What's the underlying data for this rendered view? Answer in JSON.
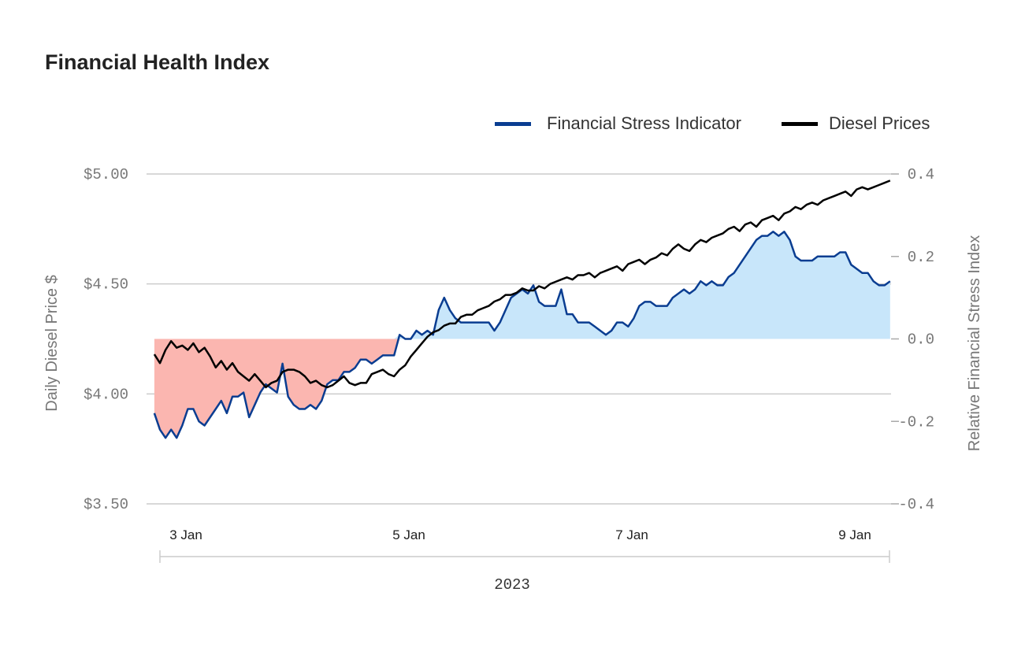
{
  "chart_title": "Financial Health Index",
  "chart_data": {
    "type": "line",
    "title": "Financial Health Index",
    "x_unit": "days since 3 Jan 2023 00:00",
    "x_range": [
      -0.05,
      6.55
    ],
    "x_ticks": [
      {
        "value": 0,
        "label": "3 Jan"
      },
      {
        "value": 2,
        "label": "5 Jan"
      },
      {
        "value": 4,
        "label": "7 Jan"
      },
      {
        "value": 6,
        "label": "9 Jan"
      }
    ],
    "x_group_label": "2023",
    "y_left": {
      "label": "Daily Diesel Price $",
      "range": [
        3.5,
        5.0
      ],
      "ticks": [
        "$3.50",
        "$4.00",
        "$4.50",
        "$5.00"
      ]
    },
    "y_right": {
      "label": "Relative Financial Stress Index",
      "range": [
        -0.4,
        0.4
      ],
      "ticks": [
        "-0.4",
        "-0.2",
        "0.0",
        "0.2",
        "0.4"
      ]
    },
    "legend": {
      "position": "top-right",
      "entries": [
        "Financial Stress Indicator",
        "Diesel Prices"
      ]
    },
    "colors": {
      "stress": "#0a3d91",
      "diesel": "#000000",
      "positive_fill": "#c8e6fa",
      "negative_fill": "#fbb6b0"
    },
    "series": [
      {
        "name": "Financial Stress Indicator",
        "axis": "right",
        "points": [
          [
            -0.05,
            -0.18
          ],
          [
            0.0,
            -0.22
          ],
          [
            0.05,
            -0.24
          ],
          [
            0.1,
            -0.22
          ],
          [
            0.15,
            -0.24
          ],
          [
            0.2,
            -0.21
          ],
          [
            0.25,
            -0.17
          ],
          [
            0.3,
            -0.17
          ],
          [
            0.35,
            -0.2
          ],
          [
            0.4,
            -0.21
          ],
          [
            0.45,
            -0.19
          ],
          [
            0.5,
            -0.17
          ],
          [
            0.55,
            -0.15
          ],
          [
            0.6,
            -0.18
          ],
          [
            0.65,
            -0.14
          ],
          [
            0.7,
            -0.14
          ],
          [
            0.75,
            -0.13
          ],
          [
            0.8,
            -0.19
          ],
          [
            0.85,
            -0.16
          ],
          [
            0.9,
            -0.13
          ],
          [
            0.95,
            -0.11
          ],
          [
            1.0,
            -0.12
          ],
          [
            1.05,
            -0.13
          ],
          [
            1.1,
            -0.06
          ],
          [
            1.15,
            -0.14
          ],
          [
            1.2,
            -0.16
          ],
          [
            1.25,
            -0.17
          ],
          [
            1.3,
            -0.17
          ],
          [
            1.35,
            -0.16
          ],
          [
            1.4,
            -0.17
          ],
          [
            1.45,
            -0.15
          ],
          [
            1.5,
            -0.11
          ],
          [
            1.55,
            -0.1
          ],
          [
            1.6,
            -0.1
          ],
          [
            1.65,
            -0.08
          ],
          [
            1.7,
            -0.08
          ],
          [
            1.75,
            -0.07
          ],
          [
            1.8,
            -0.05
          ],
          [
            1.85,
            -0.05
          ],
          [
            1.9,
            -0.06
          ],
          [
            1.95,
            -0.05
          ],
          [
            2.0,
            -0.04
          ],
          [
            2.05,
            -0.04
          ],
          [
            2.1,
            -0.04
          ],
          [
            2.15,
            0.01
          ],
          [
            2.2,
            0.0
          ],
          [
            2.25,
            0.0
          ],
          [
            2.3,
            0.02
          ],
          [
            2.35,
            0.01
          ],
          [
            2.4,
            0.02
          ],
          [
            2.45,
            0.01
          ],
          [
            2.5,
            0.07
          ],
          [
            2.55,
            0.1
          ],
          [
            2.6,
            0.07
          ],
          [
            2.65,
            0.05
          ],
          [
            2.7,
            0.04
          ],
          [
            2.75,
            0.04
          ],
          [
            2.8,
            0.04
          ],
          [
            2.85,
            0.04
          ],
          [
            2.9,
            0.04
          ],
          [
            2.95,
            0.04
          ],
          [
            3.0,
            0.02
          ],
          [
            3.05,
            0.04
          ],
          [
            3.1,
            0.07
          ],
          [
            3.15,
            0.1
          ],
          [
            3.2,
            0.11
          ],
          [
            3.25,
            0.12
          ],
          [
            3.3,
            0.11
          ],
          [
            3.35,
            0.13
          ],
          [
            3.4,
            0.09
          ],
          [
            3.45,
            0.08
          ],
          [
            3.5,
            0.08
          ],
          [
            3.55,
            0.08
          ],
          [
            3.6,
            0.12
          ],
          [
            3.65,
            0.06
          ],
          [
            3.7,
            0.06
          ],
          [
            3.75,
            0.04
          ],
          [
            3.8,
            0.04
          ],
          [
            3.85,
            0.04
          ],
          [
            3.9,
            0.03
          ],
          [
            3.95,
            0.02
          ],
          [
            4.0,
            0.01
          ],
          [
            4.05,
            0.02
          ],
          [
            4.1,
            0.04
          ],
          [
            4.15,
            0.04
          ],
          [
            4.2,
            0.03
          ],
          [
            4.25,
            0.05
          ],
          [
            4.3,
            0.08
          ],
          [
            4.35,
            0.09
          ],
          [
            4.4,
            0.09
          ],
          [
            4.45,
            0.08
          ],
          [
            4.5,
            0.08
          ],
          [
            4.55,
            0.08
          ],
          [
            4.6,
            0.1
          ],
          [
            4.65,
            0.11
          ],
          [
            4.7,
            0.12
          ],
          [
            4.75,
            0.11
          ],
          [
            4.8,
            0.12
          ],
          [
            4.85,
            0.14
          ],
          [
            4.9,
            0.13
          ],
          [
            4.95,
            0.14
          ],
          [
            5.0,
            0.13
          ],
          [
            5.05,
            0.13
          ],
          [
            5.1,
            0.15
          ],
          [
            5.15,
            0.16
          ],
          [
            5.2,
            0.18
          ],
          [
            5.25,
            0.2
          ],
          [
            5.3,
            0.22
          ],
          [
            5.35,
            0.24
          ],
          [
            5.4,
            0.25
          ],
          [
            5.45,
            0.25
          ],
          [
            5.5,
            0.26
          ],
          [
            5.55,
            0.25
          ],
          [
            5.6,
            0.26
          ],
          [
            5.65,
            0.24
          ],
          [
            5.7,
            0.2
          ],
          [
            5.75,
            0.19
          ],
          [
            5.8,
            0.19
          ],
          [
            5.85,
            0.19
          ],
          [
            5.9,
            0.2
          ],
          [
            5.95,
            0.2
          ],
          [
            6.0,
            0.2
          ],
          [
            6.05,
            0.2
          ],
          [
            6.1,
            0.21
          ],
          [
            6.15,
            0.21
          ],
          [
            6.2,
            0.18
          ],
          [
            6.25,
            0.17
          ],
          [
            6.3,
            0.16
          ],
          [
            6.35,
            0.16
          ],
          [
            6.4,
            0.14
          ],
          [
            6.45,
            0.13
          ],
          [
            6.5,
            0.13
          ],
          [
            6.55,
            0.14
          ]
        ]
      },
      {
        "name": "Diesel Prices",
        "axis": "left",
        "points": [
          [
            -0.05,
            4.18
          ],
          [
            0.0,
            4.14
          ],
          [
            0.05,
            4.2
          ],
          [
            0.1,
            4.24
          ],
          [
            0.15,
            4.21
          ],
          [
            0.2,
            4.22
          ],
          [
            0.25,
            4.2
          ],
          [
            0.3,
            4.23
          ],
          [
            0.35,
            4.19
          ],
          [
            0.4,
            4.21
          ],
          [
            0.45,
            4.17
          ],
          [
            0.5,
            4.12
          ],
          [
            0.55,
            4.15
          ],
          [
            0.6,
            4.11
          ],
          [
            0.65,
            4.14
          ],
          [
            0.7,
            4.1
          ],
          [
            0.75,
            4.08
          ],
          [
            0.8,
            4.06
          ],
          [
            0.85,
            4.09
          ],
          [
            0.9,
            4.06
          ],
          [
            0.95,
            4.03
          ],
          [
            1.0,
            4.05
          ],
          [
            1.05,
            4.06
          ],
          [
            1.1,
            4.1
          ],
          [
            1.15,
            4.11
          ],
          [
            1.2,
            4.11
          ],
          [
            1.25,
            4.1
          ],
          [
            1.3,
            4.08
          ],
          [
            1.35,
            4.05
          ],
          [
            1.4,
            4.06
          ],
          [
            1.45,
            4.04
          ],
          [
            1.5,
            4.03
          ],
          [
            1.55,
            4.04
          ],
          [
            1.6,
            4.06
          ],
          [
            1.65,
            4.08
          ],
          [
            1.7,
            4.05
          ],
          [
            1.75,
            4.04
          ],
          [
            1.8,
            4.05
          ],
          [
            1.85,
            4.05
          ],
          [
            1.9,
            4.09
          ],
          [
            1.95,
            4.1
          ],
          [
            2.0,
            4.11
          ],
          [
            2.05,
            4.09
          ],
          [
            2.1,
            4.08
          ],
          [
            2.15,
            4.11
          ],
          [
            2.2,
            4.13
          ],
          [
            2.25,
            4.17
          ],
          [
            2.3,
            4.2
          ],
          [
            2.35,
            4.23
          ],
          [
            2.4,
            4.26
          ],
          [
            2.45,
            4.28
          ],
          [
            2.5,
            4.29
          ],
          [
            2.55,
            4.31
          ],
          [
            2.6,
            4.32
          ],
          [
            2.65,
            4.32
          ],
          [
            2.7,
            4.35
          ],
          [
            2.75,
            4.36
          ],
          [
            2.8,
            4.36
          ],
          [
            2.85,
            4.38
          ],
          [
            2.9,
            4.39
          ],
          [
            2.95,
            4.4
          ],
          [
            3.0,
            4.42
          ],
          [
            3.05,
            4.43
          ],
          [
            3.1,
            4.45
          ],
          [
            3.15,
            4.45
          ],
          [
            3.2,
            4.46
          ],
          [
            3.25,
            4.48
          ],
          [
            3.3,
            4.47
          ],
          [
            3.35,
            4.47
          ],
          [
            3.4,
            4.49
          ],
          [
            3.45,
            4.48
          ],
          [
            3.5,
            4.5
          ],
          [
            3.55,
            4.51
          ],
          [
            3.6,
            4.52
          ],
          [
            3.65,
            4.53
          ],
          [
            3.7,
            4.52
          ],
          [
            3.75,
            4.54
          ],
          [
            3.8,
            4.54
          ],
          [
            3.85,
            4.55
          ],
          [
            3.9,
            4.53
          ],
          [
            3.95,
            4.55
          ],
          [
            4.0,
            4.56
          ],
          [
            4.05,
            4.57
          ],
          [
            4.1,
            4.58
          ],
          [
            4.15,
            4.56
          ],
          [
            4.2,
            4.59
          ],
          [
            4.25,
            4.6
          ],
          [
            4.3,
            4.61
          ],
          [
            4.35,
            4.59
          ],
          [
            4.4,
            4.61
          ],
          [
            4.45,
            4.62
          ],
          [
            4.5,
            4.64
          ],
          [
            4.55,
            4.63
          ],
          [
            4.6,
            4.66
          ],
          [
            4.65,
            4.68
          ],
          [
            4.7,
            4.66
          ],
          [
            4.75,
            4.65
          ],
          [
            4.8,
            4.68
          ],
          [
            4.85,
            4.7
          ],
          [
            4.9,
            4.69
          ],
          [
            4.95,
            4.71
          ],
          [
            5.0,
            4.72
          ],
          [
            5.05,
            4.73
          ],
          [
            5.1,
            4.75
          ],
          [
            5.15,
            4.76
          ],
          [
            5.2,
            4.74
          ],
          [
            5.25,
            4.77
          ],
          [
            5.3,
            4.78
          ],
          [
            5.35,
            4.76
          ],
          [
            5.4,
            4.79
          ],
          [
            5.45,
            4.8
          ],
          [
            5.5,
            4.81
          ],
          [
            5.55,
            4.79
          ],
          [
            5.6,
            4.82
          ],
          [
            5.65,
            4.83
          ],
          [
            5.7,
            4.85
          ],
          [
            5.75,
            4.84
          ],
          [
            5.8,
            4.86
          ],
          [
            5.85,
            4.87
          ],
          [
            5.9,
            4.86
          ],
          [
            5.95,
            4.88
          ],
          [
            6.0,
            4.89
          ],
          [
            6.05,
            4.9
          ],
          [
            6.1,
            4.91
          ],
          [
            6.15,
            4.92
          ],
          [
            6.2,
            4.9
          ],
          [
            6.25,
            4.93
          ],
          [
            6.3,
            4.94
          ],
          [
            6.35,
            4.93
          ],
          [
            6.4,
            4.94
          ],
          [
            6.45,
            4.95
          ],
          [
            6.5,
            4.96
          ],
          [
            6.55,
            4.97
          ]
        ]
      }
    ]
  }
}
